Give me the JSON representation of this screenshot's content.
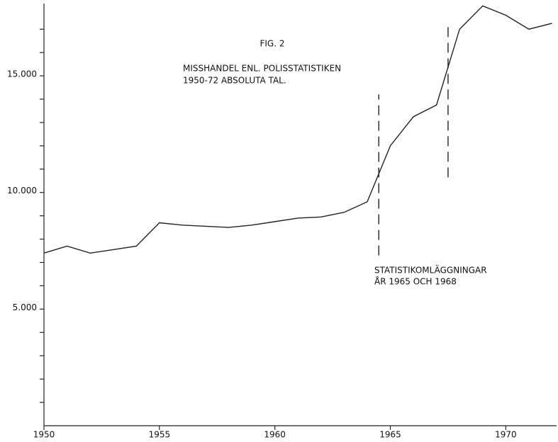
{
  "chart_data": {
    "type": "line",
    "title": "FIG. 2",
    "subtitle": [
      "MISSHANDEL ENL. POLISSTATISTIKEN",
      "1950-72 ABSOLUTA TAL."
    ],
    "annotation": [
      "STATISTIKOMLÄGGNINGAR",
      "ÅR 1965 OCH 1968"
    ],
    "x": [
      1950,
      1951,
      1952,
      1953,
      1954,
      1955,
      1956,
      1957,
      1958,
      1959,
      1960,
      1961,
      1962,
      1963,
      1964,
      1965,
      1966,
      1967,
      1968,
      1969,
      1970,
      1971,
      1972
    ],
    "series": [
      {
        "color": "#222",
        "values": [
          7400,
          7700,
          7400,
          7550,
          7700,
          8700,
          8600,
          8550,
          8500,
          8600,
          8750,
          8900,
          8950,
          9150,
          9600,
          12000,
          13250,
          13750,
          17000,
          18000,
          17600,
          17000,
          17250
        ]
      }
    ],
    "markers": [
      {
        "x": 1964.5,
        "y": [
          7300,
          14200
        ]
      },
      {
        "x": 1967.5,
        "y": [
          10650,
          17250
        ]
      }
    ],
    "xlim": [
      1950,
      1972.2
    ],
    "xticks": [
      1950,
      1955,
      1960,
      1965,
      1970
    ],
    "ylim": [
      0,
      18100
    ],
    "yticks": [
      {
        "value": 5000,
        "label": "5.000"
      },
      {
        "value": 10000,
        "label": "10.000"
      },
      {
        "value": 15000,
        "label": "15.000"
      }
    ],
    "yminor": [
      1000,
      2000,
      3000,
      4000,
      6000,
      7000,
      8000,
      9000,
      11000,
      12000,
      13000,
      14000,
      16000,
      17000
    ]
  }
}
